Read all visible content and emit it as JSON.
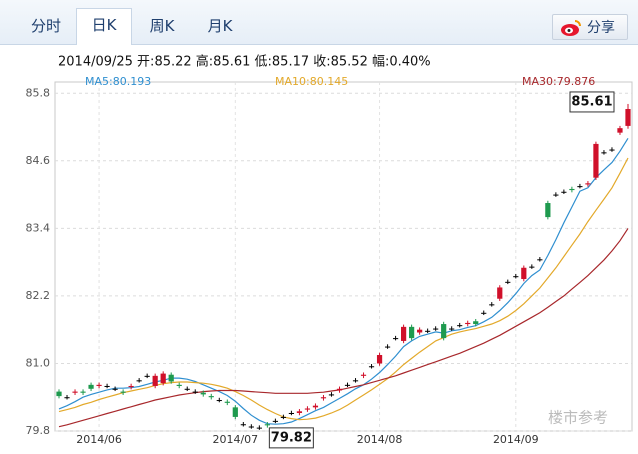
{
  "tabs": [
    "分时",
    "日K",
    "周K",
    "月K"
  ],
  "share": "分享",
  "watermark": "楼市参考",
  "chart_data": {
    "type": "candlestick",
    "info": "2014/09/25 开:85.22 高:85.61 低:85.17 收:85.52 幅:0.40%",
    "categories": [
      null,
      null,
      null,
      null,
      null,
      "2014/06",
      null,
      null,
      null,
      null,
      null,
      null,
      null,
      null,
      null,
      null,
      null,
      null,
      null,
      null,
      null,
      null,
      "2014/07",
      null,
      null,
      null,
      null,
      null,
      null,
      null,
      null,
      null,
      null,
      null,
      null,
      null,
      null,
      null,
      null,
      null,
      "2014/08",
      null,
      null,
      null,
      null,
      null,
      null,
      null,
      null,
      null,
      null,
      null,
      null,
      null,
      null,
      null,
      null,
      "2014/09",
      null,
      null,
      null,
      null,
      null,
      null,
      null,
      null,
      null,
      null,
      null,
      null,
      null,
      null
    ],
    "open": [
      80.5,
      80.4,
      80.48,
      80.5,
      80.62,
      80.6,
      80.6,
      80.55,
      80.5,
      80.58,
      80.7,
      80.78,
      80.6,
      80.65,
      80.8,
      80.62,
      80.55,
      80.5,
      80.48,
      80.42,
      80.35,
      80.32,
      80.22,
      79.92,
      79.88,
      79.86,
      79.92,
      79.98,
      80.05,
      80.12,
      80.12,
      80.18,
      80.22,
      80.38,
      80.45,
      80.52,
      80.62,
      80.7,
      80.78,
      80.95,
      81.0,
      81.3,
      81.45,
      81.4,
      81.65,
      81.55,
      81.58,
      81.62,
      81.7,
      81.62,
      81.68,
      81.7,
      81.75,
      81.9,
      82.05,
      82.15,
      82.45,
      82.55,
      82.5,
      82.72,
      82.85,
      83.85,
      84.0,
      84.05,
      84.1,
      84.15,
      84.18,
      84.3,
      84.75,
      84.8,
      85.1,
      85.22
    ],
    "high": [
      80.54,
      80.44,
      80.54,
      80.54,
      80.66,
      80.66,
      80.64,
      80.59,
      80.54,
      80.64,
      80.74,
      80.82,
      80.82,
      80.86,
      80.84,
      80.66,
      80.59,
      80.54,
      80.52,
      80.46,
      80.39,
      80.36,
      80.26,
      79.96,
      79.92,
      79.9,
      79.96,
      80.02,
      80.09,
      80.16,
      80.19,
      80.24,
      80.29,
      80.44,
      80.49,
      80.59,
      80.66,
      80.74,
      80.84,
      80.99,
      81.19,
      81.34,
      81.49,
      81.69,
      81.69,
      81.64,
      81.62,
      81.66,
      81.74,
      81.66,
      81.72,
      81.76,
      81.79,
      81.94,
      82.09,
      82.39,
      82.49,
      82.59,
      82.74,
      82.76,
      82.89,
      83.89,
      84.04,
      84.09,
      84.14,
      84.19,
      84.24,
      84.94,
      84.79,
      84.84,
      85.22,
      85.61
    ],
    "low": [
      80.38,
      80.36,
      80.44,
      80.44,
      80.51,
      80.56,
      80.56,
      80.51,
      80.44,
      80.54,
      80.66,
      80.74,
      80.56,
      80.61,
      80.64,
      80.56,
      80.51,
      80.46,
      80.41,
      80.36,
      80.31,
      80.26,
      80.01,
      79.88,
      79.84,
      79.82,
      79.86,
      79.94,
      80.01,
      80.08,
      80.08,
      80.14,
      80.18,
      80.34,
      80.41,
      80.48,
      80.58,
      80.66,
      80.74,
      80.91,
      80.96,
      81.26,
      81.41,
      81.36,
      81.41,
      81.51,
      81.54,
      81.58,
      81.41,
      81.58,
      81.64,
      81.66,
      81.66,
      81.86,
      82.01,
      82.11,
      82.41,
      82.51,
      82.46,
      82.68,
      82.81,
      83.56,
      83.96,
      84.01,
      84.04,
      84.11,
      84.14,
      84.26,
      84.71,
      84.76,
      85.06,
      85.17
    ],
    "close": [
      80.42,
      80.4,
      80.5,
      80.48,
      80.55,
      80.62,
      80.6,
      80.55,
      80.48,
      80.6,
      80.7,
      80.78,
      80.78,
      80.82,
      80.68,
      80.6,
      80.55,
      80.5,
      80.45,
      80.4,
      80.35,
      80.3,
      80.05,
      79.92,
      79.88,
      79.86,
      79.9,
      79.98,
      80.05,
      80.12,
      80.15,
      80.2,
      80.25,
      80.4,
      80.45,
      80.55,
      80.62,
      80.7,
      80.8,
      80.95,
      81.15,
      81.3,
      81.45,
      81.65,
      81.45,
      81.6,
      81.58,
      81.62,
      81.45,
      81.62,
      81.68,
      81.72,
      81.7,
      81.9,
      82.05,
      82.35,
      82.45,
      82.55,
      82.7,
      82.72,
      82.85,
      83.6,
      84.0,
      84.05,
      84.08,
      84.15,
      84.2,
      84.9,
      84.75,
      84.8,
      85.18,
      85.52
    ],
    "up_color": "#d0102a",
    "down_color": "#1e9a4e",
    "flat_color": "#000000",
    "series": [
      {
        "name": "MA5:80.193",
        "color": "#2f8fd0",
        "values": [
          80.193,
          80.25,
          80.32,
          80.4,
          80.45,
          80.49,
          80.53,
          80.56,
          80.56,
          80.57,
          80.59,
          80.63,
          80.67,
          80.7,
          80.74,
          80.74,
          80.72,
          80.68,
          80.62,
          80.56,
          80.5,
          80.43,
          80.33,
          80.2,
          80.08,
          79.99,
          79.93,
          79.92,
          79.93,
          79.96,
          80.02,
          80.09,
          80.16,
          80.22,
          80.3,
          80.38,
          80.46,
          80.55,
          80.62,
          80.72,
          80.84,
          80.98,
          81.13,
          81.3,
          81.4,
          81.48,
          81.52,
          81.56,
          81.54,
          81.58,
          81.6,
          81.64,
          81.67,
          81.74,
          81.82,
          81.94,
          82.08,
          82.24,
          82.42,
          82.56,
          82.66,
          82.92,
          83.2,
          83.5,
          83.78,
          84.06,
          84.12,
          84.3,
          84.44,
          84.57,
          84.77,
          85.0
        ]
      },
      {
        "name": "MA10:80.145",
        "color": "#e3a92a",
        "values": [
          80.145,
          80.18,
          80.22,
          80.27,
          80.31,
          80.36,
          80.4,
          80.44,
          80.48,
          80.51,
          80.54,
          80.57,
          80.61,
          80.64,
          80.66,
          80.67,
          80.67,
          80.66,
          80.65,
          80.63,
          80.6,
          80.56,
          80.5,
          80.43,
          80.35,
          80.26,
          80.18,
          80.11,
          80.05,
          80.02,
          80.0,
          80.01,
          80.03,
          80.07,
          80.12,
          80.18,
          80.26,
          80.35,
          80.44,
          80.53,
          80.63,
          80.73,
          80.85,
          80.98,
          81.09,
          81.2,
          81.3,
          81.4,
          81.46,
          81.52,
          81.56,
          81.59,
          81.62,
          81.66,
          81.7,
          81.76,
          81.84,
          81.94,
          82.06,
          82.2,
          82.34,
          82.52,
          82.7,
          82.9,
          83.1,
          83.3,
          83.52,
          83.72,
          83.92,
          84.12,
          84.38,
          84.65
        ]
      },
      {
        "name": "MA30:79.876",
        "color": "#a8282c",
        "values": [
          79.876,
          79.91,
          79.95,
          79.99,
          80.03,
          80.07,
          80.11,
          80.15,
          80.19,
          80.23,
          80.27,
          80.31,
          80.35,
          80.38,
          80.41,
          80.44,
          80.46,
          80.48,
          80.5,
          80.51,
          80.52,
          80.52,
          80.52,
          80.51,
          80.5,
          80.49,
          80.48,
          80.47,
          80.47,
          80.47,
          80.47,
          80.47,
          80.48,
          80.49,
          80.51,
          80.53,
          80.56,
          80.59,
          80.62,
          80.66,
          80.7,
          80.74,
          80.78,
          80.83,
          80.88,
          80.93,
          80.98,
          81.03,
          81.08,
          81.13,
          81.18,
          81.24,
          81.3,
          81.36,
          81.43,
          81.5,
          81.58,
          81.66,
          81.74,
          81.82,
          81.9,
          82.0,
          82.1,
          82.2,
          82.32,
          82.44,
          82.56,
          82.7,
          82.84,
          83.0,
          83.18,
          83.4
        ]
      }
    ],
    "annotations": [
      85.61,
      79.82
    ],
    "ylim": [
      79.8,
      86.0
    ],
    "yticks": [
      {
        "value": 79.8,
        "label": "79.8"
      },
      {
        "value": 81.0,
        "label": "81.0"
      },
      82.2,
      83.4,
      84.6,
      85.8
    ],
    "grid": true
  }
}
